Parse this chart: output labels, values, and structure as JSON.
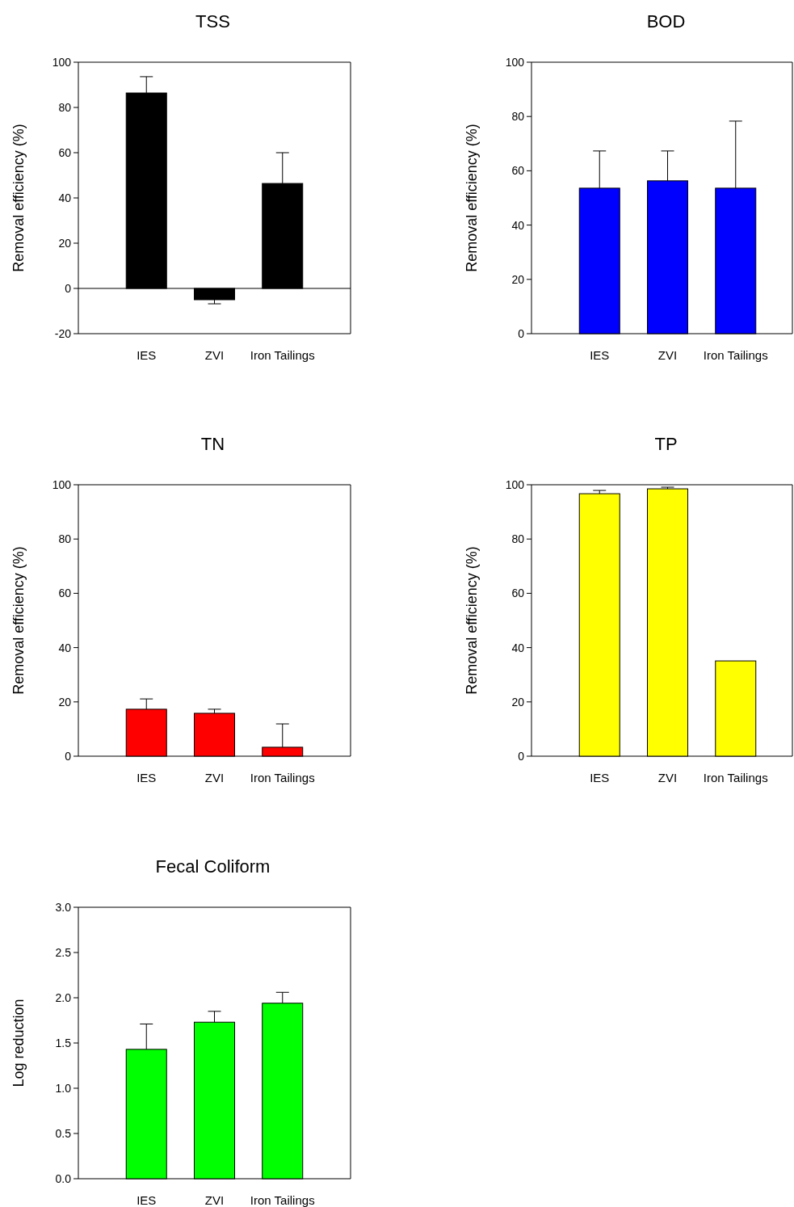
{
  "chart_data": [
    {
      "type": "bar",
      "title": "TSS",
      "ylabel": "Removal efficiency (%)",
      "categories": [
        "IES",
        "ZVI",
        "Iron Tailings"
      ],
      "values": [
        86.4,
        -5,
        46.4
      ],
      "errors": [
        7.2,
        1.8,
        13.6
      ],
      "color": "#000000",
      "ylim": [
        -20,
        100
      ],
      "yticks": [
        -20,
        0,
        20,
        40,
        60,
        80,
        100
      ]
    },
    {
      "type": "bar",
      "title": "BOD",
      "ylabel": "Removal efficiency (%)",
      "categories": [
        "IES",
        "ZVI",
        "Iron Tailings"
      ],
      "values": [
        53.6,
        56.3,
        53.6
      ],
      "errors": [
        13.7,
        11,
        24.7
      ],
      "color": "#0000ff",
      "ylim": [
        0,
        100
      ],
      "yticks": [
        0,
        20,
        40,
        60,
        80,
        100
      ],
      "grid": false
    },
    {
      "type": "bar",
      "title": "TN",
      "ylabel": "Removal efficiency (%)",
      "categories": [
        "IES",
        "ZVI",
        "Iron Tailings"
      ],
      "values": [
        17.3,
        15.8,
        3.3
      ],
      "errors": [
        3.8,
        1.5,
        8.6
      ],
      "color": "#ff0000",
      "ylim": [
        0,
        100
      ],
      "yticks": [
        0,
        20,
        40,
        60,
        80,
        100
      ],
      "grid": false
    },
    {
      "type": "bar",
      "title": "TP",
      "ylabel": "Removal efficiency (%)",
      "categories": [
        "IES",
        "ZVI",
        "Iron Tailings"
      ],
      "values": [
        96.7,
        98.5,
        35.1
      ],
      "errors": [
        1.2,
        0.6,
        null
      ],
      "color": "#ffff00",
      "ylim": [
        0,
        100
      ],
      "yticks": [
        0,
        20,
        40,
        60,
        80,
        100
      ],
      "grid": false
    },
    {
      "type": "bar",
      "title": "Fecal Coliform",
      "ylabel": "Log reduction",
      "categories": [
        "IES",
        "ZVI",
        "Iron Tailings"
      ],
      "values": [
        1.43,
        1.73,
        1.94
      ],
      "errors": [
        0.28,
        0.12,
        0.12
      ],
      "color": "#00ff00",
      "ylim": [
        0,
        3
      ],
      "yticks": [
        {
          "value": 0,
          "label": "0.0"
        },
        {
          "value": 0.5,
          "label": "0.5"
        },
        {
          "value": 1,
          "label": "1.0"
        },
        {
          "value": 1.5,
          "label": "1.5"
        },
        {
          "value": 2,
          "label": "2.0"
        },
        {
          "value": 2.5,
          "label": "2.5"
        },
        {
          "value": 3,
          "label": "3.0"
        }
      ],
      "grid": false
    }
  ]
}
